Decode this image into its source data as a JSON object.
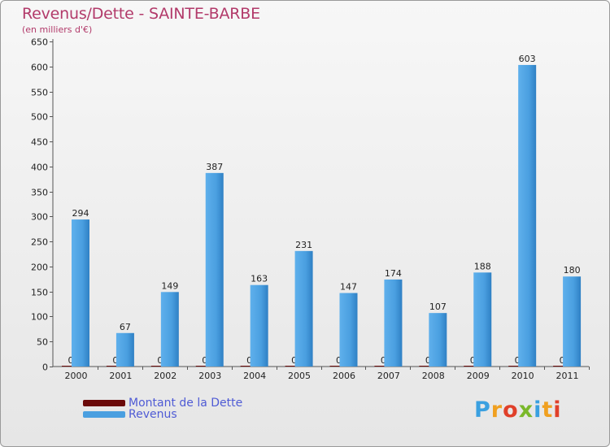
{
  "chart_data": {
    "type": "bar",
    "title": "Revenus/Dette - SAINTE-BARBE",
    "subtitle": "(en milliers d'€)",
    "categories": [
      "2000",
      "2001",
      "2002",
      "2003",
      "2004",
      "2005",
      "2006",
      "2007",
      "2008",
      "2009",
      "2010",
      "2011"
    ],
    "series": [
      {
        "name": "Montant de la Dette",
        "color": "#6b0a0a",
        "values": [
          0,
          0,
          0,
          0,
          0,
          0,
          0,
          0,
          0,
          0,
          0,
          0
        ]
      },
      {
        "name": "Revenus",
        "color": "#4a9fe0",
        "values": [
          294,
          67,
          149,
          387,
          163,
          231,
          147,
          174,
          107,
          188,
          603,
          180
        ]
      }
    ],
    "ylim": [
      0,
      650
    ],
    "yticks": [
      0,
      50,
      100,
      150,
      200,
      250,
      300,
      350,
      400,
      450,
      500,
      550,
      600,
      650
    ],
    "grid": false,
    "legend_position": "bottom-left",
    "xlabel": "",
    "ylabel": ""
  },
  "logo": {
    "text": "Proxiti"
  }
}
